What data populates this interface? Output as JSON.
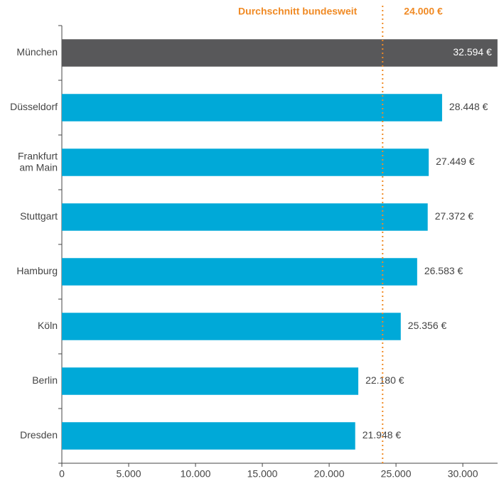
{
  "chart_data": {
    "type": "hbar",
    "categories": [
      "München",
      "Düsseldorf",
      "Frankfurt\nam Main",
      "Stuttgart",
      "Hamburg",
      "Köln",
      "Berlin",
      "Dresden"
    ],
    "values": [
      32594,
      28448,
      27449,
      27372,
      26583,
      25356,
      22180,
      21948
    ],
    "value_labels": [
      "32.594 €",
      "28.448 €",
      "27.449 €",
      "27.372 €",
      "26.583 €",
      "25.356 €",
      "22.180 €",
      "21.948 €"
    ],
    "colors": [
      "#58585a",
      "#00a9d8",
      "#00a9d8",
      "#00a9d8",
      "#00a9d8",
      "#00a9d8",
      "#00a9d8",
      "#00a9d8"
    ],
    "xlim": [
      0,
      32600
    ],
    "xticks": [
      0,
      {
        "value": 5000,
        "label": "5.000"
      },
      {
        "value": 10000,
        "label": "10.000"
      },
      {
        "value": 15000,
        "label": "15.000"
      },
      {
        "value": 20000,
        "label": "20.000"
      },
      {
        "value": 25000,
        "label": "25.000"
      },
      {
        "value": 30000,
        "label": "30.000"
      }
    ],
    "reference_line": {
      "label": "Durchschnitt bundesweit",
      "value": 24000,
      "value_label": "24.000 €",
      "color": "#f08a24"
    }
  }
}
